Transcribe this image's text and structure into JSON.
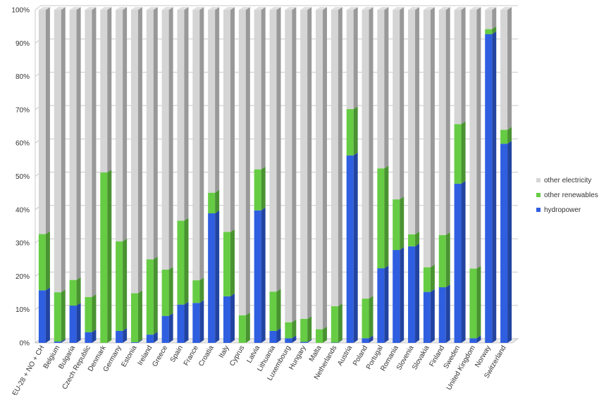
{
  "chart_data": {
    "type": "bar",
    "stacked": true,
    "orientation": "vertical",
    "ylim": [
      0,
      100
    ],
    "yticks": [
      0,
      10,
      20,
      30,
      40,
      50,
      60,
      70,
      80,
      90,
      100
    ],
    "ytick_labels": [
      "0%",
      "10%",
      "20%",
      "30%",
      "40%",
      "50%",
      "60%",
      "70%",
      "80%",
      "90%",
      "100%"
    ],
    "grid": true,
    "legend_position": "right",
    "categories": [
      "EU-28 + NO + CH",
      "Belgium",
      "Bulgaria",
      "Czech Republic",
      "Denmark",
      "Germany",
      "Estonia",
      "Ireland",
      "Greece",
      "Spain",
      "France",
      "Croatia",
      "Italy",
      "Cyprus",
      "Latvia",
      "Lithuania",
      "Luxembourg",
      "Hungary",
      "Malta",
      "Netherlands",
      "Austria",
      "Poland",
      "Portugal",
      "Romania",
      "Slovenia",
      "Slovakia",
      "Finland",
      "Sweden",
      "United Kingdom",
      "Norway",
      "Switzerland"
    ],
    "series": [
      {
        "name": "hydropower",
        "color": "#2f5fe0",
        "values": [
          15.8,
          0.4,
          11.2,
          3.2,
          0.0,
          3.6,
          0.2,
          2.5,
          8.1,
          11.5,
          12.0,
          38.9,
          14.0,
          0.0,
          39.8,
          3.6,
          1.4,
          0.3,
          0.0,
          0.1,
          56.3,
          1.4,
          22.4,
          27.9,
          29.0,
          15.3,
          16.7,
          47.8,
          1.4,
          92.7,
          59.8
        ]
      },
      {
        "name": "other renewables",
        "color": "#66cc44",
        "values": [
          16.9,
          14.8,
          7.7,
          10.6,
          51.2,
          26.9,
          14.7,
          22.6,
          13.9,
          25.2,
          6.8,
          6.2,
          19.3,
          8.3,
          12.3,
          11.8,
          4.8,
          6.9,
          4.1,
          10.9,
          13.9,
          11.9,
          30.0,
          15.2,
          3.6,
          7.4,
          15.7,
          17.9,
          20.9,
          1.5,
          4.2
        ]
      },
      {
        "name": "other electricity",
        "color": "#d5d5d5",
        "values": [
          67.3,
          84.8,
          81.1,
          86.2,
          48.8,
          69.5,
          85.1,
          74.9,
          78.0,
          63.3,
          81.2,
          54.9,
          66.7,
          91.7,
          47.9,
          84.6,
          93.8,
          92.8,
          95.9,
          89.0,
          29.8,
          86.7,
          47.6,
          56.9,
          67.4,
          77.3,
          67.6,
          34.3,
          77.7,
          5.8,
          36.0
        ]
      }
    ],
    "legend_order": [
      "other electricity",
      "other renewables",
      "hydropower"
    ]
  }
}
